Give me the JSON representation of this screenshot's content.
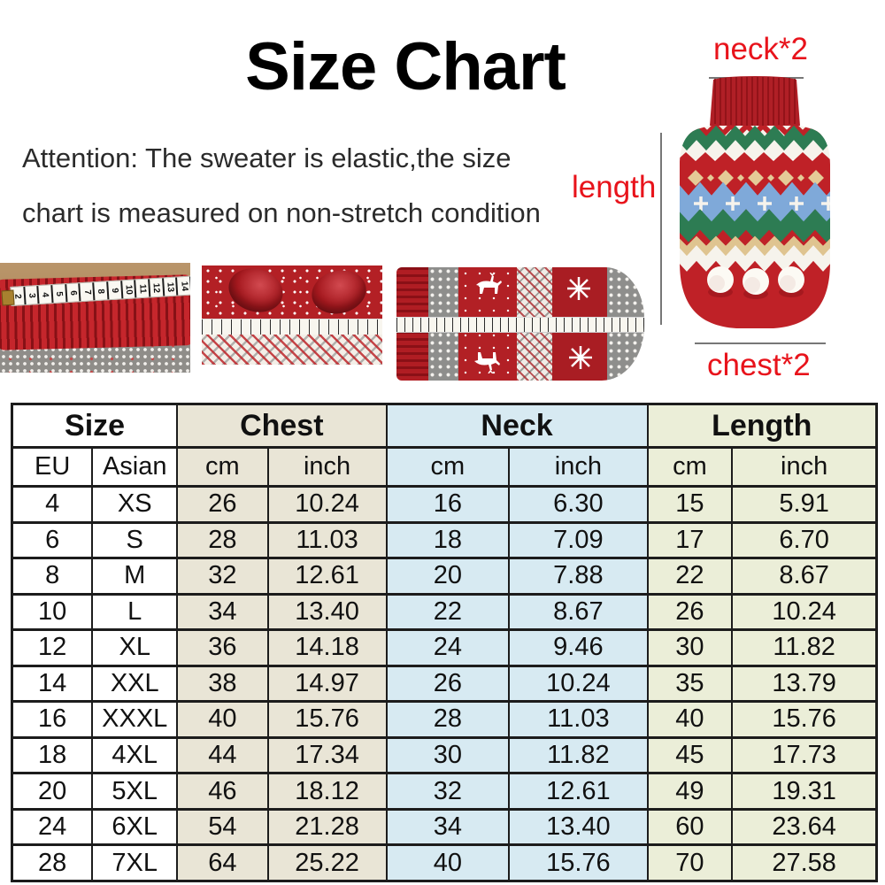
{
  "header": {
    "title": "Size Chart",
    "attention_line1": "Attention: The sweater is elastic,the size",
    "attention_line2": "chart is measured on non-stretch condition"
  },
  "diagram": {
    "neck_label": "neck*2",
    "length_label": "length",
    "chest_label": "chest*2"
  },
  "photos": {
    "tape_numbers": [
      "2",
      "3",
      "4",
      "5",
      "6",
      "7",
      "8",
      "9",
      "10",
      "11",
      "12",
      "13",
      "14"
    ]
  },
  "chart_data": {
    "type": "table",
    "title": "Size Chart",
    "column_groups": [
      {
        "label": "Size",
        "subs": [
          "EU",
          "Asian"
        ]
      },
      {
        "label": "Chest",
        "subs": [
          "cm",
          "inch"
        ]
      },
      {
        "label": "Neck",
        "subs": [
          "cm",
          "inch"
        ]
      },
      {
        "label": "Length",
        "subs": [
          "cm",
          "inch"
        ]
      }
    ],
    "columns": [
      "Size EU",
      "Size Asian",
      "Chest cm",
      "Chest inch",
      "Neck cm",
      "Neck inch",
      "Length cm",
      "Length inch"
    ],
    "rows": [
      [
        "4",
        "XS",
        "26",
        "10.24",
        "16",
        "6.30",
        "15",
        "5.91"
      ],
      [
        "6",
        "S",
        "28",
        "11.03",
        "18",
        "7.09",
        "17",
        "6.70"
      ],
      [
        "8",
        "M",
        "32",
        "12.61",
        "20",
        "7.88",
        "22",
        "8.67"
      ],
      [
        "10",
        "L",
        "34",
        "13.40",
        "22",
        "8.67",
        "26",
        "10.24"
      ],
      [
        "12",
        "XL",
        "36",
        "14.18",
        "24",
        "9.46",
        "30",
        "11.82"
      ],
      [
        "14",
        "XXL",
        "38",
        "14.97",
        "26",
        "10.24",
        "35",
        "13.79"
      ],
      [
        "16",
        "XXXL",
        "40",
        "15.76",
        "28",
        "11.03",
        "40",
        "15.76"
      ],
      [
        "18",
        "4XL",
        "44",
        "17.34",
        "30",
        "11.82",
        "45",
        "17.73"
      ],
      [
        "20",
        "5XL",
        "46",
        "18.12",
        "32",
        "12.61",
        "49",
        "19.31"
      ],
      [
        "24",
        "6XL",
        "54",
        "21.28",
        "34",
        "13.40",
        "60",
        "23.64"
      ],
      [
        "28",
        "7XL",
        "64",
        "25.22",
        "40",
        "15.76",
        "70",
        "27.58"
      ]
    ]
  },
  "colors": {
    "label_red": "#e8131b",
    "chest_bg": "#e9e5d6",
    "neck_bg": "#d7eaf2",
    "length_bg": "#ebeed8",
    "table_border": "#1c1c1c"
  }
}
